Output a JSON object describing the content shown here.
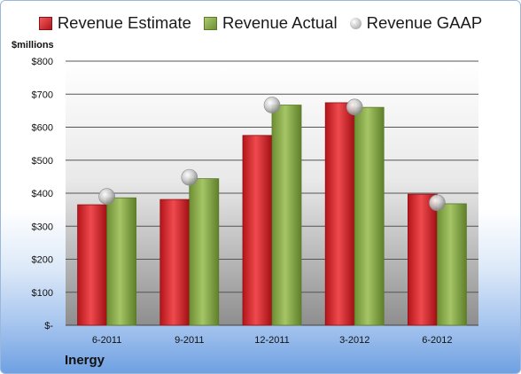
{
  "chart_data": {
    "type": "bar",
    "categories": [
      "6-2011",
      "9-2011",
      "12-2011",
      "3-2012",
      "6-2012"
    ],
    "series": [
      {
        "name": "Revenue Estimate",
        "values": [
          365,
          381,
          575,
          674,
          397
        ],
        "color": "#d9252a",
        "marker": "bar"
      },
      {
        "name": "Revenue Actual",
        "values": [
          386,
          444,
          667,
          660,
          368
        ],
        "color": "#87ab4a",
        "marker": "bar"
      },
      {
        "name": "Revenue GAAP",
        "values": [
          390,
          448,
          667,
          661,
          371
        ],
        "color": "#c2c2c2",
        "marker": "circle"
      }
    ],
    "ylabel": "$millions",
    "yticks": [
      "$-",
      "$100",
      "$200",
      "$300",
      "$400",
      "$500",
      "$600",
      "$700",
      "$800"
    ],
    "ylim": [
      0,
      800
    ],
    "grid": true,
    "legend_position": "top"
  },
  "footer": {
    "company": "Inergy"
  }
}
